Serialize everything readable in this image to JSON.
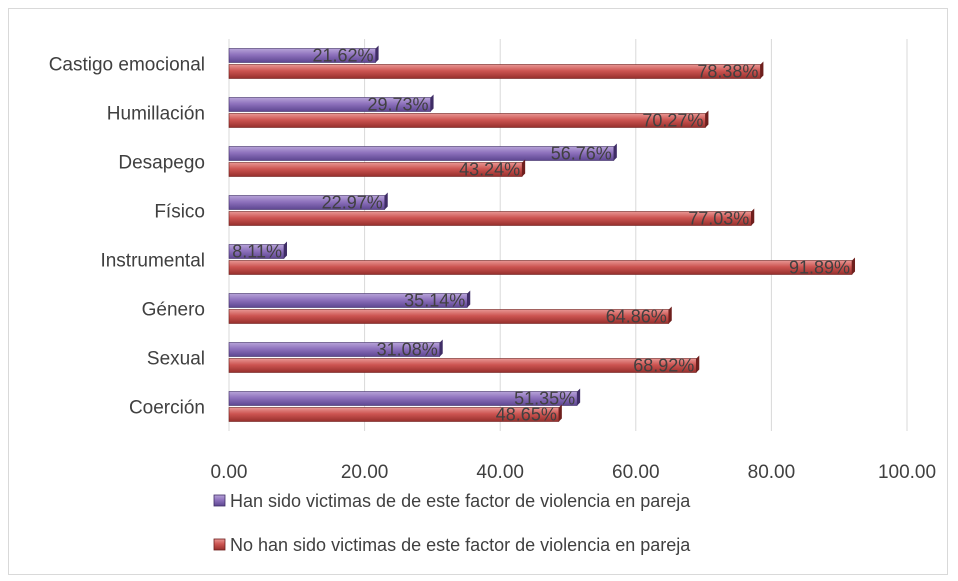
{
  "chart_data": {
    "type": "bar",
    "orientation": "horizontal",
    "categories": [
      "Castigo emocional",
      "Humillación",
      "Desapego",
      "Físico",
      "Instrumental",
      "Género ",
      "Sexual",
      "Coerción"
    ],
    "series": [
      {
        "name": "Han sido victimas de de este factor de violencia en pareja",
        "values": [
          21.62,
          29.73,
          56.76,
          22.97,
          8.11,
          35.14,
          31.08,
          51.35
        ],
        "labels": [
          "21.62%",
          "29.73%",
          "56.76%",
          "22.97%",
          "8.11%",
          "35.14%",
          "31.08%",
          "51.35%"
        ],
        "color": "#8064a2"
      },
      {
        "name": "No han sido victimas de este factor de violencia en pareja",
        "values": [
          78.38,
          70.27,
          43.24,
          77.03,
          91.89,
          64.86,
          68.92,
          48.65
        ],
        "labels": [
          "78.38%",
          "70.27%",
          "43.24%",
          "77.03%",
          "91.89%",
          "64.86%",
          "68.92%",
          "48.65%"
        ],
        "color": "#c0504d"
      }
    ],
    "xlim": [
      0,
      100
    ],
    "xticks": [
      "0.00",
      "20.00",
      "40.00",
      "60.00",
      "80.00",
      "100.00"
    ],
    "grid": true,
    "legend_position": "bottom",
    "title": "",
    "xlabel": "",
    "ylabel": ""
  },
  "colors": {
    "gridline": "#d9d9d9",
    "text": "#404040"
  }
}
